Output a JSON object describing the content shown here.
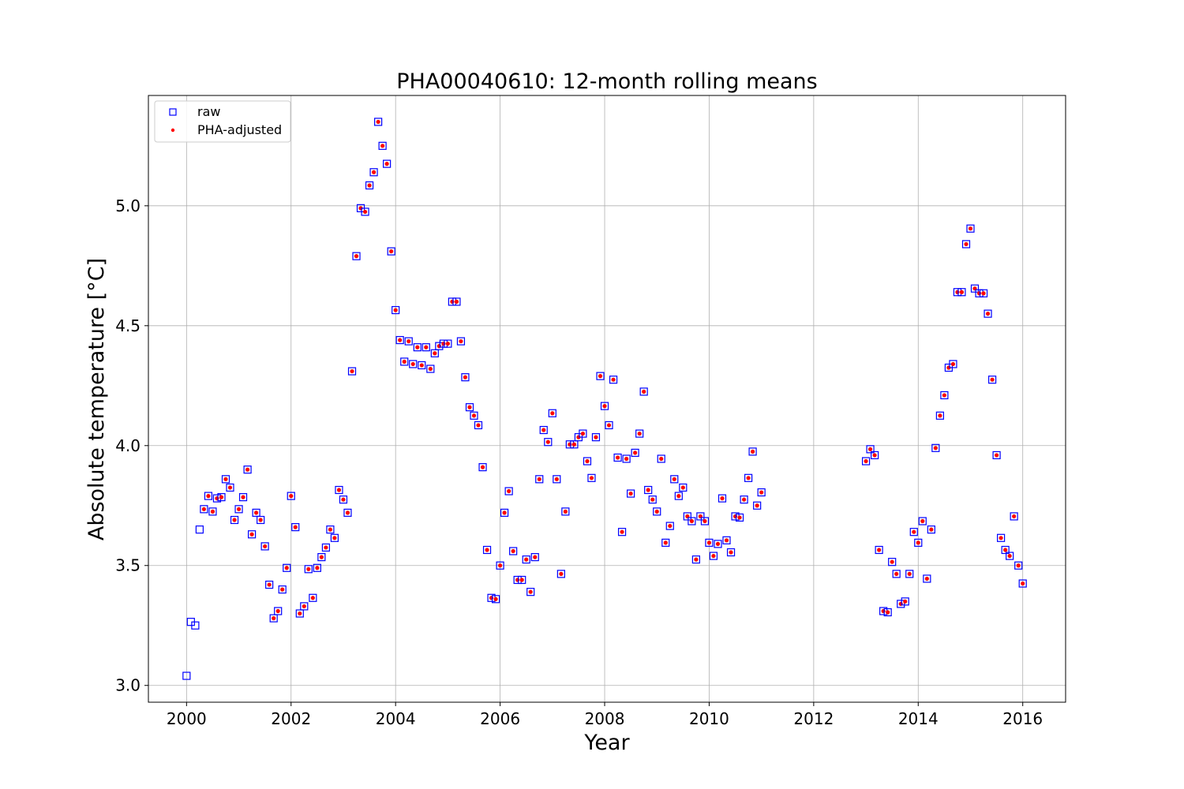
{
  "chart_data": {
    "type": "scatter",
    "title": "PHA00040610: 12-month rolling means",
    "xlabel": "Year",
    "ylabel": "Absolute temperature [°C]",
    "xlim": [
      1999.27,
      2016.82
    ],
    "ylim": [
      2.93,
      5.46
    ],
    "x_ticks": [
      2000,
      2002,
      2004,
      2006,
      2008,
      2010,
      2012,
      2014,
      2016
    ],
    "y_ticks": [
      3.0,
      3.5,
      4.0,
      4.5,
      5.0
    ],
    "x_tick_labels": [
      "2000",
      "2002",
      "2004",
      "2006",
      "2008",
      "2010",
      "2012",
      "2014",
      "2016"
    ],
    "y_tick_labels": [
      "3.0",
      "3.5",
      "4.0",
      "4.5",
      "5.0"
    ],
    "grid": true,
    "legend_position": "top-left",
    "colors": {
      "raw": "#0000ff",
      "adjusted": "#ff0000"
    },
    "series": [
      {
        "name": "raw",
        "marker": "open-square",
        "raw_only_x": [
          2000.0,
          2000.083,
          2000.167,
          2000.25
        ]
      },
      {
        "name": "PHA-adjusted",
        "marker": "filled-circle"
      }
    ],
    "raw_only": [
      [
        2000.0,
        3.04
      ],
      [
        2000.083,
        3.265
      ],
      [
        2000.167,
        3.25
      ],
      [
        2000.25,
        3.65
      ]
    ],
    "points": [
      [
        2000.333,
        3.735
      ],
      [
        2000.417,
        3.79
      ],
      [
        2000.5,
        3.725
      ],
      [
        2000.583,
        3.78
      ],
      [
        2000.667,
        3.785
      ],
      [
        2000.75,
        3.86
      ],
      [
        2000.833,
        3.825
      ],
      [
        2000.917,
        3.69
      ],
      [
        2001.0,
        3.735
      ],
      [
        2001.083,
        3.785
      ],
      [
        2001.167,
        3.9
      ],
      [
        2001.25,
        3.63
      ],
      [
        2001.333,
        3.72
      ],
      [
        2001.417,
        3.69
      ],
      [
        2001.5,
        3.58
      ],
      [
        2001.583,
        3.42
      ],
      [
        2001.667,
        3.28
      ],
      [
        2001.75,
        3.31
      ],
      [
        2001.833,
        3.4
      ],
      [
        2001.917,
        3.49
      ],
      [
        2002.0,
        3.79
      ],
      [
        2002.083,
        3.66
      ],
      [
        2002.167,
        3.3
      ],
      [
        2002.25,
        3.33
      ],
      [
        2002.333,
        3.485
      ],
      [
        2002.417,
        3.365
      ],
      [
        2002.5,
        3.49
      ],
      [
        2002.583,
        3.535
      ],
      [
        2002.667,
        3.575
      ],
      [
        2002.75,
        3.65
      ],
      [
        2002.833,
        3.615
      ],
      [
        2002.917,
        3.815
      ],
      [
        2003.0,
        3.775
      ],
      [
        2003.083,
        3.72
      ],
      [
        2003.167,
        4.31
      ],
      [
        2003.25,
        4.79
      ],
      [
        2003.333,
        4.99
      ],
      [
        2003.417,
        4.975
      ],
      [
        2003.5,
        5.085
      ],
      [
        2003.583,
        5.14
      ],
      [
        2003.667,
        5.35
      ],
      [
        2003.75,
        5.25
      ],
      [
        2003.833,
        5.175
      ],
      [
        2003.917,
        4.81
      ],
      [
        2004.0,
        4.565
      ],
      [
        2004.083,
        4.44
      ],
      [
        2004.167,
        4.35
      ],
      [
        2004.25,
        4.435
      ],
      [
        2004.333,
        4.34
      ],
      [
        2004.417,
        4.41
      ],
      [
        2004.5,
        4.335
      ],
      [
        2004.583,
        4.41
      ],
      [
        2004.667,
        4.32
      ],
      [
        2004.75,
        4.385
      ],
      [
        2004.833,
        4.415
      ],
      [
        2004.917,
        4.425
      ],
      [
        2005.0,
        4.425
      ],
      [
        2005.083,
        4.6
      ],
      [
        2005.167,
        4.6
      ],
      [
        2005.25,
        4.435
      ],
      [
        2005.333,
        4.285
      ],
      [
        2005.417,
        4.16
      ],
      [
        2005.5,
        4.125
      ],
      [
        2005.583,
        4.085
      ],
      [
        2005.667,
        3.91
      ],
      [
        2005.75,
        3.565
      ],
      [
        2005.833,
        3.365
      ],
      [
        2005.917,
        3.36
      ],
      [
        2006.0,
        3.5
      ],
      [
        2006.083,
        3.72
      ],
      [
        2006.167,
        3.81
      ],
      [
        2006.25,
        3.56
      ],
      [
        2006.333,
        3.44
      ],
      [
        2006.417,
        3.44
      ],
      [
        2006.5,
        3.525
      ],
      [
        2006.583,
        3.39
      ],
      [
        2006.667,
        3.535
      ],
      [
        2006.75,
        3.86
      ],
      [
        2006.833,
        4.065
      ],
      [
        2006.917,
        4.015
      ],
      [
        2007.0,
        4.135
      ],
      [
        2007.083,
        3.86
      ],
      [
        2007.167,
        3.465
      ],
      [
        2007.25,
        3.725
      ],
      [
        2007.333,
        4.005
      ],
      [
        2007.417,
        4.005
      ],
      [
        2007.5,
        4.035
      ],
      [
        2007.583,
        4.05
      ],
      [
        2007.667,
        3.935
      ],
      [
        2007.75,
        3.865
      ],
      [
        2007.833,
        4.035
      ],
      [
        2007.917,
        4.29
      ],
      [
        2008.0,
        4.165
      ],
      [
        2008.083,
        4.085
      ],
      [
        2008.167,
        4.275
      ],
      [
        2008.25,
        3.95
      ],
      [
        2008.333,
        3.64
      ],
      [
        2008.417,
        3.945
      ],
      [
        2008.5,
        3.8
      ],
      [
        2008.583,
        3.97
      ],
      [
        2008.667,
        4.05
      ],
      [
        2008.75,
        4.225
      ],
      [
        2008.833,
        3.815
      ],
      [
        2008.917,
        3.775
      ],
      [
        2009.0,
        3.725
      ],
      [
        2009.083,
        3.945
      ],
      [
        2009.167,
        3.595
      ],
      [
        2009.25,
        3.665
      ],
      [
        2009.333,
        3.86
      ],
      [
        2009.417,
        3.79
      ],
      [
        2009.5,
        3.825
      ],
      [
        2009.583,
        3.705
      ],
      [
        2009.667,
        3.685
      ],
      [
        2009.75,
        3.525
      ],
      [
        2009.833,
        3.705
      ],
      [
        2009.917,
        3.685
      ],
      [
        2010.0,
        3.595
      ],
      [
        2010.083,
        3.54
      ],
      [
        2010.167,
        3.59
      ],
      [
        2010.25,
        3.78
      ],
      [
        2010.333,
        3.605
      ],
      [
        2010.417,
        3.555
      ],
      [
        2010.5,
        3.705
      ],
      [
        2010.583,
        3.7
      ],
      [
        2010.667,
        3.775
      ],
      [
        2010.75,
        3.865
      ],
      [
        2010.833,
        3.975
      ],
      [
        2010.917,
        3.75
      ],
      [
        2011.0,
        3.805
      ],
      [
        2013.0,
        3.935
      ],
      [
        2013.083,
        3.985
      ],
      [
        2013.167,
        3.96
      ],
      [
        2013.25,
        3.565
      ],
      [
        2013.333,
        3.31
      ],
      [
        2013.417,
        3.305
      ],
      [
        2013.5,
        3.515
      ],
      [
        2013.583,
        3.465
      ],
      [
        2013.667,
        3.34
      ],
      [
        2013.75,
        3.35
      ],
      [
        2013.833,
        3.465
      ],
      [
        2013.917,
        3.64
      ],
      [
        2014.0,
        3.595
      ],
      [
        2014.083,
        3.685
      ],
      [
        2014.167,
        3.445
      ],
      [
        2014.25,
        3.65
      ],
      [
        2014.333,
        3.99
      ],
      [
        2014.417,
        4.125
      ],
      [
        2014.5,
        4.21
      ],
      [
        2014.583,
        4.325
      ],
      [
        2014.667,
        4.34
      ],
      [
        2014.75,
        4.64
      ],
      [
        2014.833,
        4.64
      ],
      [
        2014.917,
        4.84
      ],
      [
        2015.0,
        4.905
      ],
      [
        2015.083,
        4.655
      ],
      [
        2015.167,
        4.635
      ],
      [
        2015.25,
        4.635
      ],
      [
        2015.333,
        4.55
      ],
      [
        2015.417,
        4.275
      ],
      [
        2015.5,
        3.96
      ],
      [
        2015.583,
        3.615
      ],
      [
        2015.667,
        3.565
      ],
      [
        2015.75,
        3.54
      ],
      [
        2015.833,
        3.705
      ],
      [
        2015.917,
        3.5
      ],
      [
        2016.0,
        3.425
      ]
    ]
  }
}
